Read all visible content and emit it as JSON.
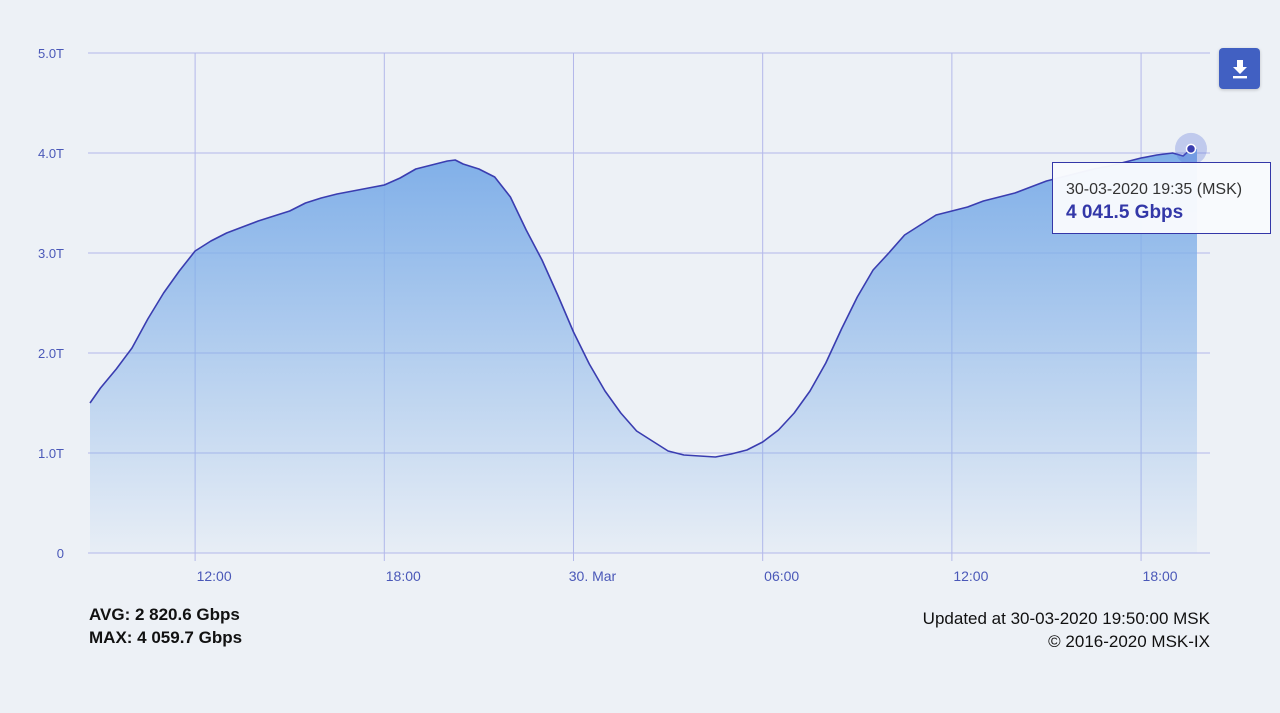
{
  "chart_data": {
    "type": "area",
    "x_unit": "MSK time",
    "ylim": [
      0,
      5
    ],
    "y_ticks": [
      {
        "value": 0,
        "label": "0"
      },
      {
        "value": 1,
        "label": "1.0T"
      },
      {
        "value": 2,
        "label": "2.0T"
      },
      {
        "value": 3,
        "label": "3.0T"
      },
      {
        "value": 4,
        "label": "4.0T"
      },
      {
        "value": 5,
        "label": "5.0T"
      }
    ],
    "x_range": [
      "29-03-2020 08:00",
      "30-03-2020 19:40"
    ],
    "x_ticks": [
      {
        "value": "29-03-2020 12:00",
        "label": "12:00"
      },
      {
        "value": "29-03-2020 18:00",
        "label": "18:00"
      },
      {
        "value": "30-03-2020 00:00",
        "label": "30. Mar"
      },
      {
        "value": "30-03-2020 06:00",
        "label": "06:00"
      },
      {
        "value": "30-03-2020 12:00",
        "label": "12:00"
      },
      {
        "value": "30-03-2020 18:00",
        "label": "18:00"
      }
    ],
    "grid": true,
    "series": [
      {
        "color": "#3a3db0",
        "fill_top": "#7eaee8",
        "points": [
          [
            "29-03-2020 08:40",
            1.5
          ],
          [
            "29-03-2020 09:00",
            1.65
          ],
          [
            "29-03-2020 09:30",
            1.84
          ],
          [
            "29-03-2020 10:00",
            2.05
          ],
          [
            "29-03-2020 10:30",
            2.34
          ],
          [
            "29-03-2020 11:00",
            2.6
          ],
          [
            "29-03-2020 11:30",
            2.82
          ],
          [
            "29-03-2020 12:00",
            3.02
          ],
          [
            "29-03-2020 12:30",
            3.12
          ],
          [
            "29-03-2020 13:00",
            3.2
          ],
          [
            "29-03-2020 13:30",
            3.26
          ],
          [
            "29-03-2020 14:00",
            3.32
          ],
          [
            "29-03-2020 14:30",
            3.37
          ],
          [
            "29-03-2020 15:00",
            3.42
          ],
          [
            "29-03-2020 15:30",
            3.5
          ],
          [
            "29-03-2020 16:00",
            3.55
          ],
          [
            "29-03-2020 16:30",
            3.59
          ],
          [
            "29-03-2020 17:00",
            3.62
          ],
          [
            "29-03-2020 17:30",
            3.65
          ],
          [
            "29-03-2020 18:00",
            3.68
          ],
          [
            "29-03-2020 18:30",
            3.75
          ],
          [
            "29-03-2020 19:00",
            3.84
          ],
          [
            "29-03-2020 19:30",
            3.88
          ],
          [
            "29-03-2020 20:00",
            3.92
          ],
          [
            "29-03-2020 20:15",
            3.93
          ],
          [
            "29-03-2020 20:30",
            3.89
          ],
          [
            "29-03-2020 21:00",
            3.84
          ],
          [
            "29-03-2020 21:30",
            3.76
          ],
          [
            "29-03-2020 22:00",
            3.56
          ],
          [
            "29-03-2020 22:30",
            3.23
          ],
          [
            "29-03-2020 23:00",
            2.93
          ],
          [
            "29-03-2020 23:30",
            2.58
          ],
          [
            "30-03-2020 00:00",
            2.21
          ],
          [
            "30-03-2020 00:30",
            1.89
          ],
          [
            "30-03-2020 01:00",
            1.62
          ],
          [
            "30-03-2020 01:30",
            1.4
          ],
          [
            "30-03-2020 02:00",
            1.22
          ],
          [
            "30-03-2020 02:30",
            1.12
          ],
          [
            "30-03-2020 03:00",
            1.02
          ],
          [
            "30-03-2020 03:30",
            0.98
          ],
          [
            "30-03-2020 04:00",
            0.97
          ],
          [
            "30-03-2020 04:30",
            0.96
          ],
          [
            "30-03-2020 05:00",
            0.99
          ],
          [
            "30-03-2020 05:30",
            1.03
          ],
          [
            "30-03-2020 06:00",
            1.11
          ],
          [
            "30-03-2020 06:30",
            1.23
          ],
          [
            "30-03-2020 07:00",
            1.4
          ],
          [
            "30-03-2020 07:30",
            1.62
          ],
          [
            "30-03-2020 08:00",
            1.9
          ],
          [
            "30-03-2020 08:30",
            2.24
          ],
          [
            "30-03-2020 09:00",
            2.56
          ],
          [
            "30-03-2020 09:30",
            2.83
          ],
          [
            "30-03-2020 10:00",
            3.0
          ],
          [
            "30-03-2020 10:30",
            3.18
          ],
          [
            "30-03-2020 11:00",
            3.28
          ],
          [
            "30-03-2020 11:30",
            3.38
          ],
          [
            "30-03-2020 12:00",
            3.42
          ],
          [
            "30-03-2020 12:30",
            3.46
          ],
          [
            "30-03-2020 13:00",
            3.52
          ],
          [
            "30-03-2020 13:30",
            3.56
          ],
          [
            "30-03-2020 14:00",
            3.6
          ],
          [
            "30-03-2020 14:30",
            3.66
          ],
          [
            "30-03-2020 15:00",
            3.72
          ],
          [
            "30-03-2020 15:30",
            3.76
          ],
          [
            "30-03-2020 16:00",
            3.8
          ],
          [
            "30-03-2020 16:30",
            3.84
          ],
          [
            "30-03-2020 17:00",
            3.87
          ],
          [
            "30-03-2020 17:30",
            3.91
          ],
          [
            "30-03-2020 18:00",
            3.95
          ],
          [
            "30-03-2020 18:30",
            3.98
          ],
          [
            "30-03-2020 19:00",
            4.0
          ],
          [
            "30-03-2020 19:20",
            3.97
          ],
          [
            "30-03-2020 19:35",
            4.04
          ]
        ]
      }
    ],
    "highlight": {
      "x": "30-03-2020 19:35",
      "y": 4.0415
    }
  },
  "tooltip": {
    "time": "30-03-2020 19:35 (MSK)",
    "value": "4 041.5 Gbps"
  },
  "stats": {
    "avg": "AVG: 2 820.6 Gbps",
    "max": "MAX: 4 059.7 Gbps"
  },
  "footer": {
    "updated": "Updated at 30-03-2020 19:50:00 MSK",
    "copyright": "© 2016-2020 MSK-IX"
  },
  "icons": {
    "download": "download-icon"
  }
}
